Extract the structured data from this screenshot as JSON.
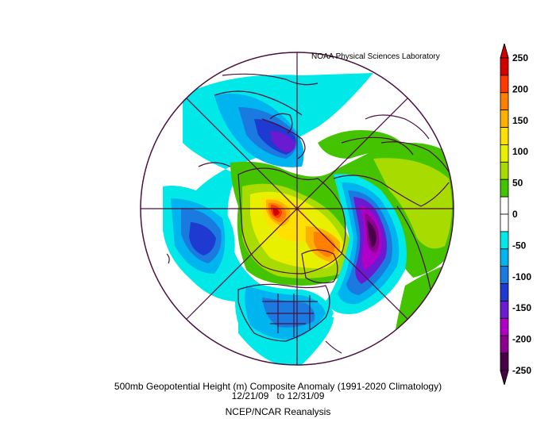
{
  "credit": "NOAA Physical Sciences Laboratory",
  "title": "500mb Geopotential Height (m) Composite Anomaly (1991-2020 Climatology)",
  "date_range": "12/21/09   to 12/31/09",
  "dataset": "NCEP/NCAR Reanalysis",
  "map": {
    "projection": "north-polar-stereographic",
    "coastline_color": "#4a1040",
    "background": "#ffffff"
  },
  "colorbar": {
    "ticks": [
      "250",
      "200",
      "150",
      "100",
      "50",
      "0",
      "-50",
      "-100",
      "-150",
      "-200",
      "-250"
    ],
    "colors": [
      "#d40000",
      "#ff3a00",
      "#ff7f00",
      "#ffb000",
      "#ffe000",
      "#e8f000",
      "#a8dc00",
      "#44c400",
      "#ffffff",
      "#ffffff",
      "#00e8e8",
      "#00b4f0",
      "#1a7ae0",
      "#1e3ad0",
      "#6a1ad0",
      "#b000c8",
      "#8c0090",
      "#4a0048"
    ]
  }
}
